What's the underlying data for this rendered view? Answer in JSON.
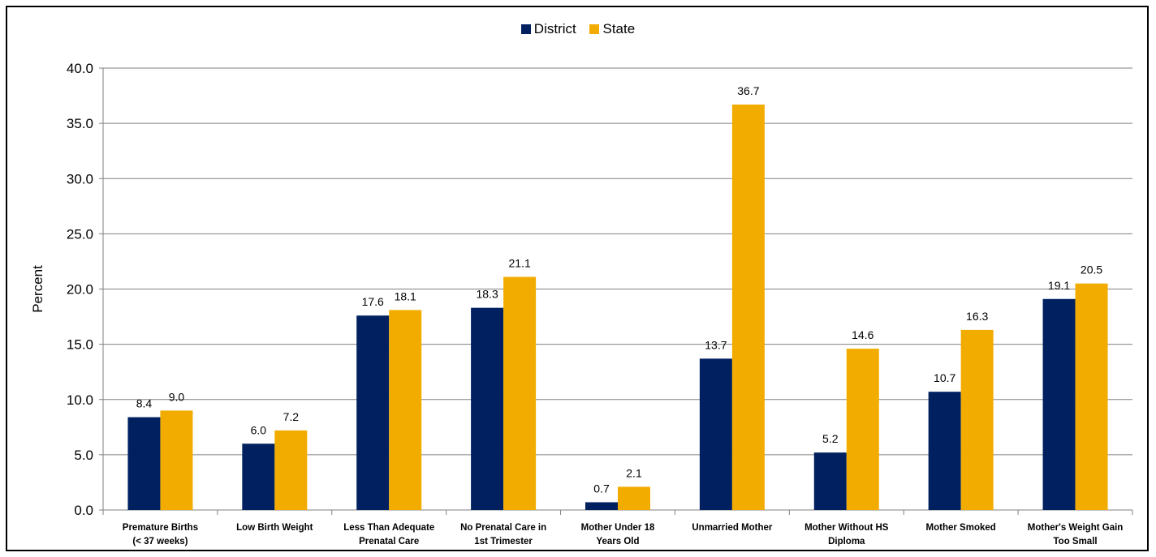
{
  "chart_data": {
    "type": "bar",
    "categories": [
      [
        "Premature Births",
        "(< 37 weeks)"
      ],
      [
        "Low Birth Weight"
      ],
      [
        "Less Than Adequate",
        "Prenatal Care"
      ],
      [
        "No Prenatal Care in",
        "1st Trimester"
      ],
      [
        "Mother Under 18",
        "Years Old"
      ],
      [
        "Unmarried Mother"
      ],
      [
        "Mother Without HS",
        "Diploma"
      ],
      [
        "Mother Smoked"
      ],
      [
        "Mother's Weight Gain",
        "Too Small"
      ]
    ],
    "series": [
      {
        "name": "District",
        "color": "#002060",
        "values": [
          8.4,
          6.0,
          17.6,
          18.3,
          0.7,
          13.7,
          5.2,
          10.7,
          19.1
        ]
      },
      {
        "name": "State",
        "color": "#F2AC00",
        "values": [
          9.0,
          7.2,
          18.1,
          21.1,
          2.1,
          36.7,
          14.6,
          16.3,
          20.5
        ]
      }
    ],
    "ylabel": "Percent",
    "xlabel": "",
    "ylim": [
      0,
      40
    ],
    "yticks": [
      0,
      5,
      10,
      15,
      20,
      25,
      30,
      35,
      40
    ],
    "grid": true,
    "legend": "top-center"
  }
}
